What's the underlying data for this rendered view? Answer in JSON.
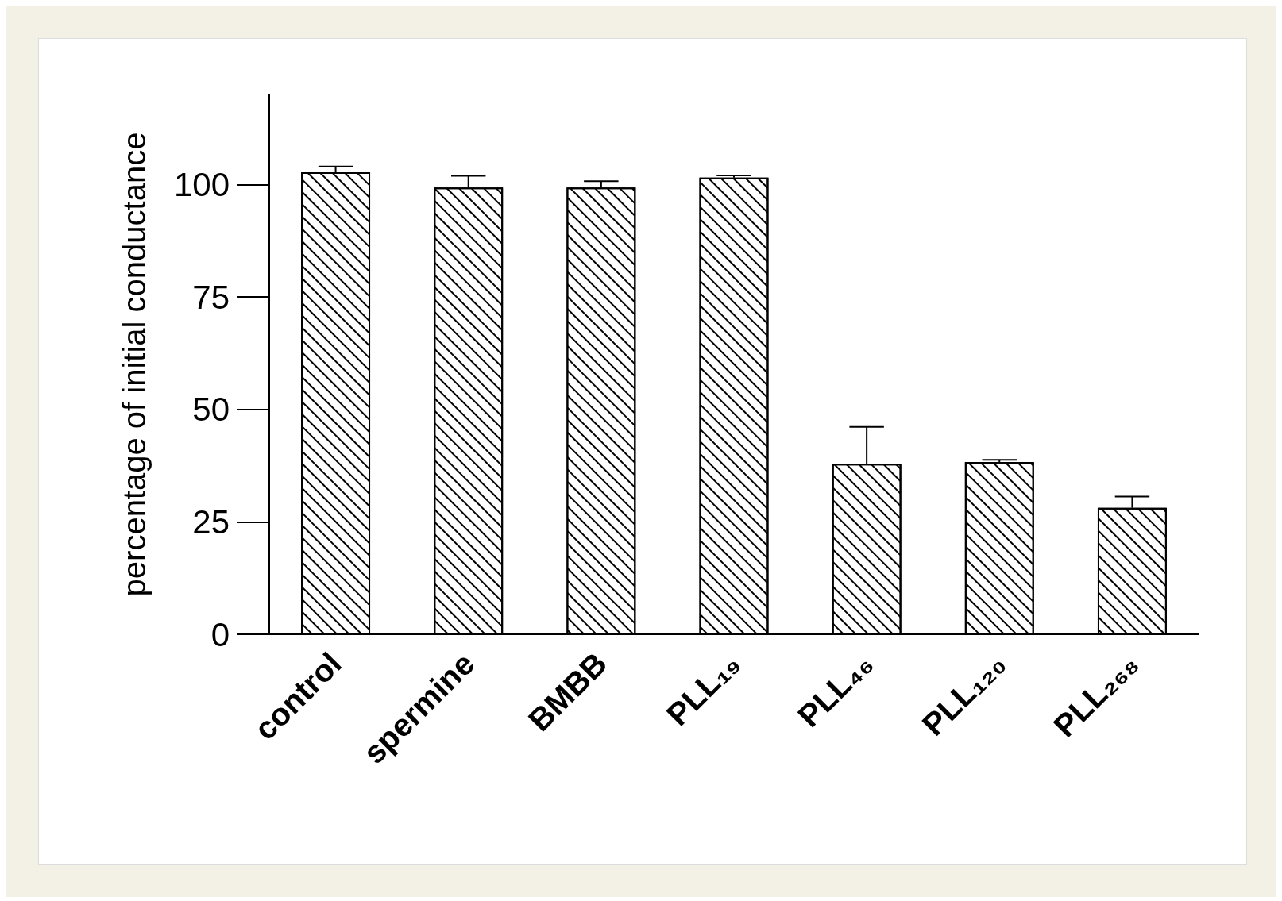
{
  "chart_data": {
    "type": "bar",
    "ylabel": "percentage of initial conductance",
    "categories": [
      "control",
      "spermine",
      "BMBB",
      "PLL₁₉",
      "PLL₄₆",
      "PLL₁₂₀",
      "PLL₂₆₈"
    ],
    "values": [
      102.7,
      99.3,
      99.3,
      101.5,
      37.9,
      38.3,
      28.1
    ],
    "errors": [
      [
        102.7,
        104
      ],
      [
        99.3,
        101.9
      ],
      [
        99.3,
        100.7
      ],
      [
        101.5,
        102
      ],
      [
        37.9,
        46.1
      ],
      [
        38.3,
        38.8
      ],
      [
        28.1,
        30.6
      ]
    ],
    "color": "#ffffff",
    "ylim": [
      0,
      120
    ],
    "yticks": [
      0,
      25,
      50,
      75,
      100
    ],
    "grid": false
  }
}
